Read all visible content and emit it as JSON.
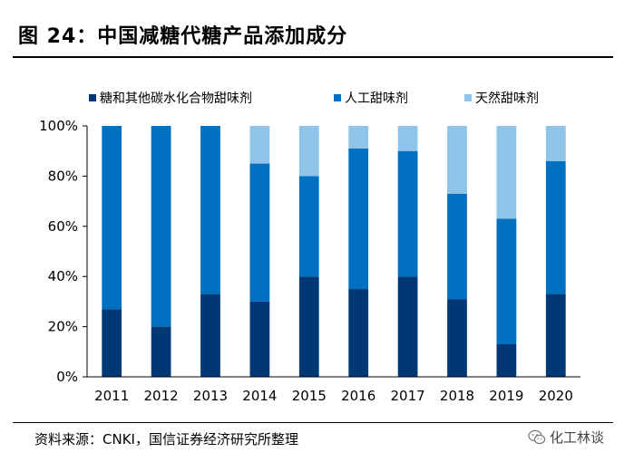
{
  "header": {
    "title": "图 24：中国减糖代糖产品添加成分"
  },
  "footer": {
    "source": "资料来源：CNKI，国信证券经济研究所整理",
    "watermark": "化工林谈",
    "watermark_icon": "wechat-icon"
  },
  "chart_data": {
    "type": "bar",
    "stacked": true,
    "title": "中国减糖代糖产品添加成分",
    "categories": [
      "2011",
      "2012",
      "2013",
      "2014",
      "2015",
      "2016",
      "2017",
      "2018",
      "2019",
      "2020"
    ],
    "series": [
      {
        "name": "糖和其他碳水化合物甜味剂",
        "color": "#003876",
        "values": [
          27,
          20,
          33,
          30,
          40,
          35,
          40,
          31,
          13,
          33
        ]
      },
      {
        "name": "人工甜味剂",
        "color": "#0070c0",
        "values": [
          73,
          80,
          67,
          55,
          40,
          56,
          50,
          42,
          50,
          53
        ]
      },
      {
        "name": "天然甜味剂",
        "color": "#8fc3e8",
        "values": [
          0,
          0,
          0,
          15,
          20,
          9,
          10,
          27,
          37,
          14
        ]
      }
    ],
    "yticks": [
      "0%",
      "20%",
      "40%",
      "60%",
      "80%",
      "100%"
    ],
    "ylim": [
      0,
      100
    ],
    "xlabel": "",
    "ylabel": "",
    "legend_position": "top"
  }
}
